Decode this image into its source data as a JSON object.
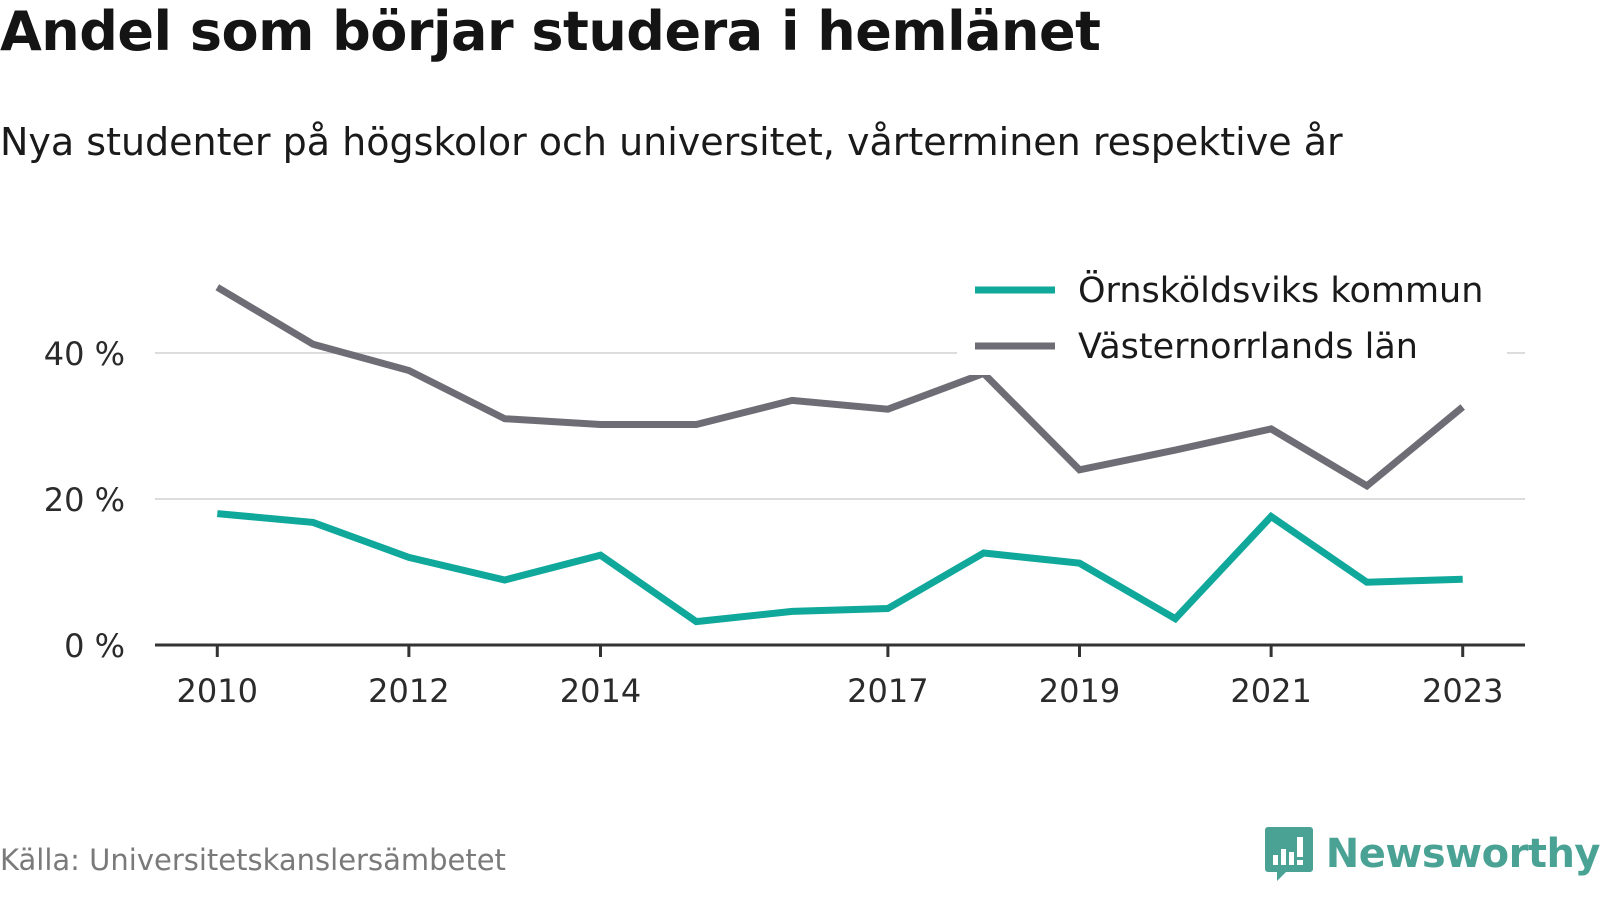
{
  "header": {
    "title": "Andel som börjar studera i hemlänet",
    "subtitle": "Nya studenter på högskolor och universitet, vårterminen respektive år"
  },
  "footer": {
    "source": "Källa: Universitetskanslersämbetet",
    "brand": "Newsworthy",
    "brand_icon": "bar-chart-speech-bubble-icon",
    "brand_color": "#4aa294"
  },
  "chart_data": {
    "type": "line",
    "x": [
      2010,
      2011,
      2012,
      2013,
      2014,
      2015,
      2016,
      2017,
      2018,
      2019,
      2020,
      2021,
      2022,
      2023
    ],
    "x_tick_labels": [
      "2010",
      "2012",
      "2014",
      "2017",
      "2019",
      "2021",
      "2023"
    ],
    "y_ticks": [
      0,
      20,
      40
    ],
    "y_tick_labels": [
      "0 %",
      "20 %",
      "40 %"
    ],
    "ylim": [
      0,
      50
    ],
    "xlim": [
      2009.35,
      2023.65
    ],
    "grid": true,
    "legend_position": "top-right",
    "series": [
      {
        "name": "Örnsköldsviks kommun",
        "color": "#0fa89b",
        "values": [
          18.0,
          16.8,
          12.0,
          8.9,
          12.3,
          3.2,
          4.6,
          5.0,
          12.6,
          11.2,
          3.6,
          17.6,
          8.6,
          9.0
        ]
      },
      {
        "name": "Västernorrlands län",
        "color": "#6e6d76",
        "values": [
          49.0,
          41.2,
          37.6,
          31.0,
          30.2,
          30.2,
          33.5,
          32.3,
          37.2,
          24.0,
          26.7,
          29.6,
          21.8,
          32.6
        ]
      }
    ]
  }
}
